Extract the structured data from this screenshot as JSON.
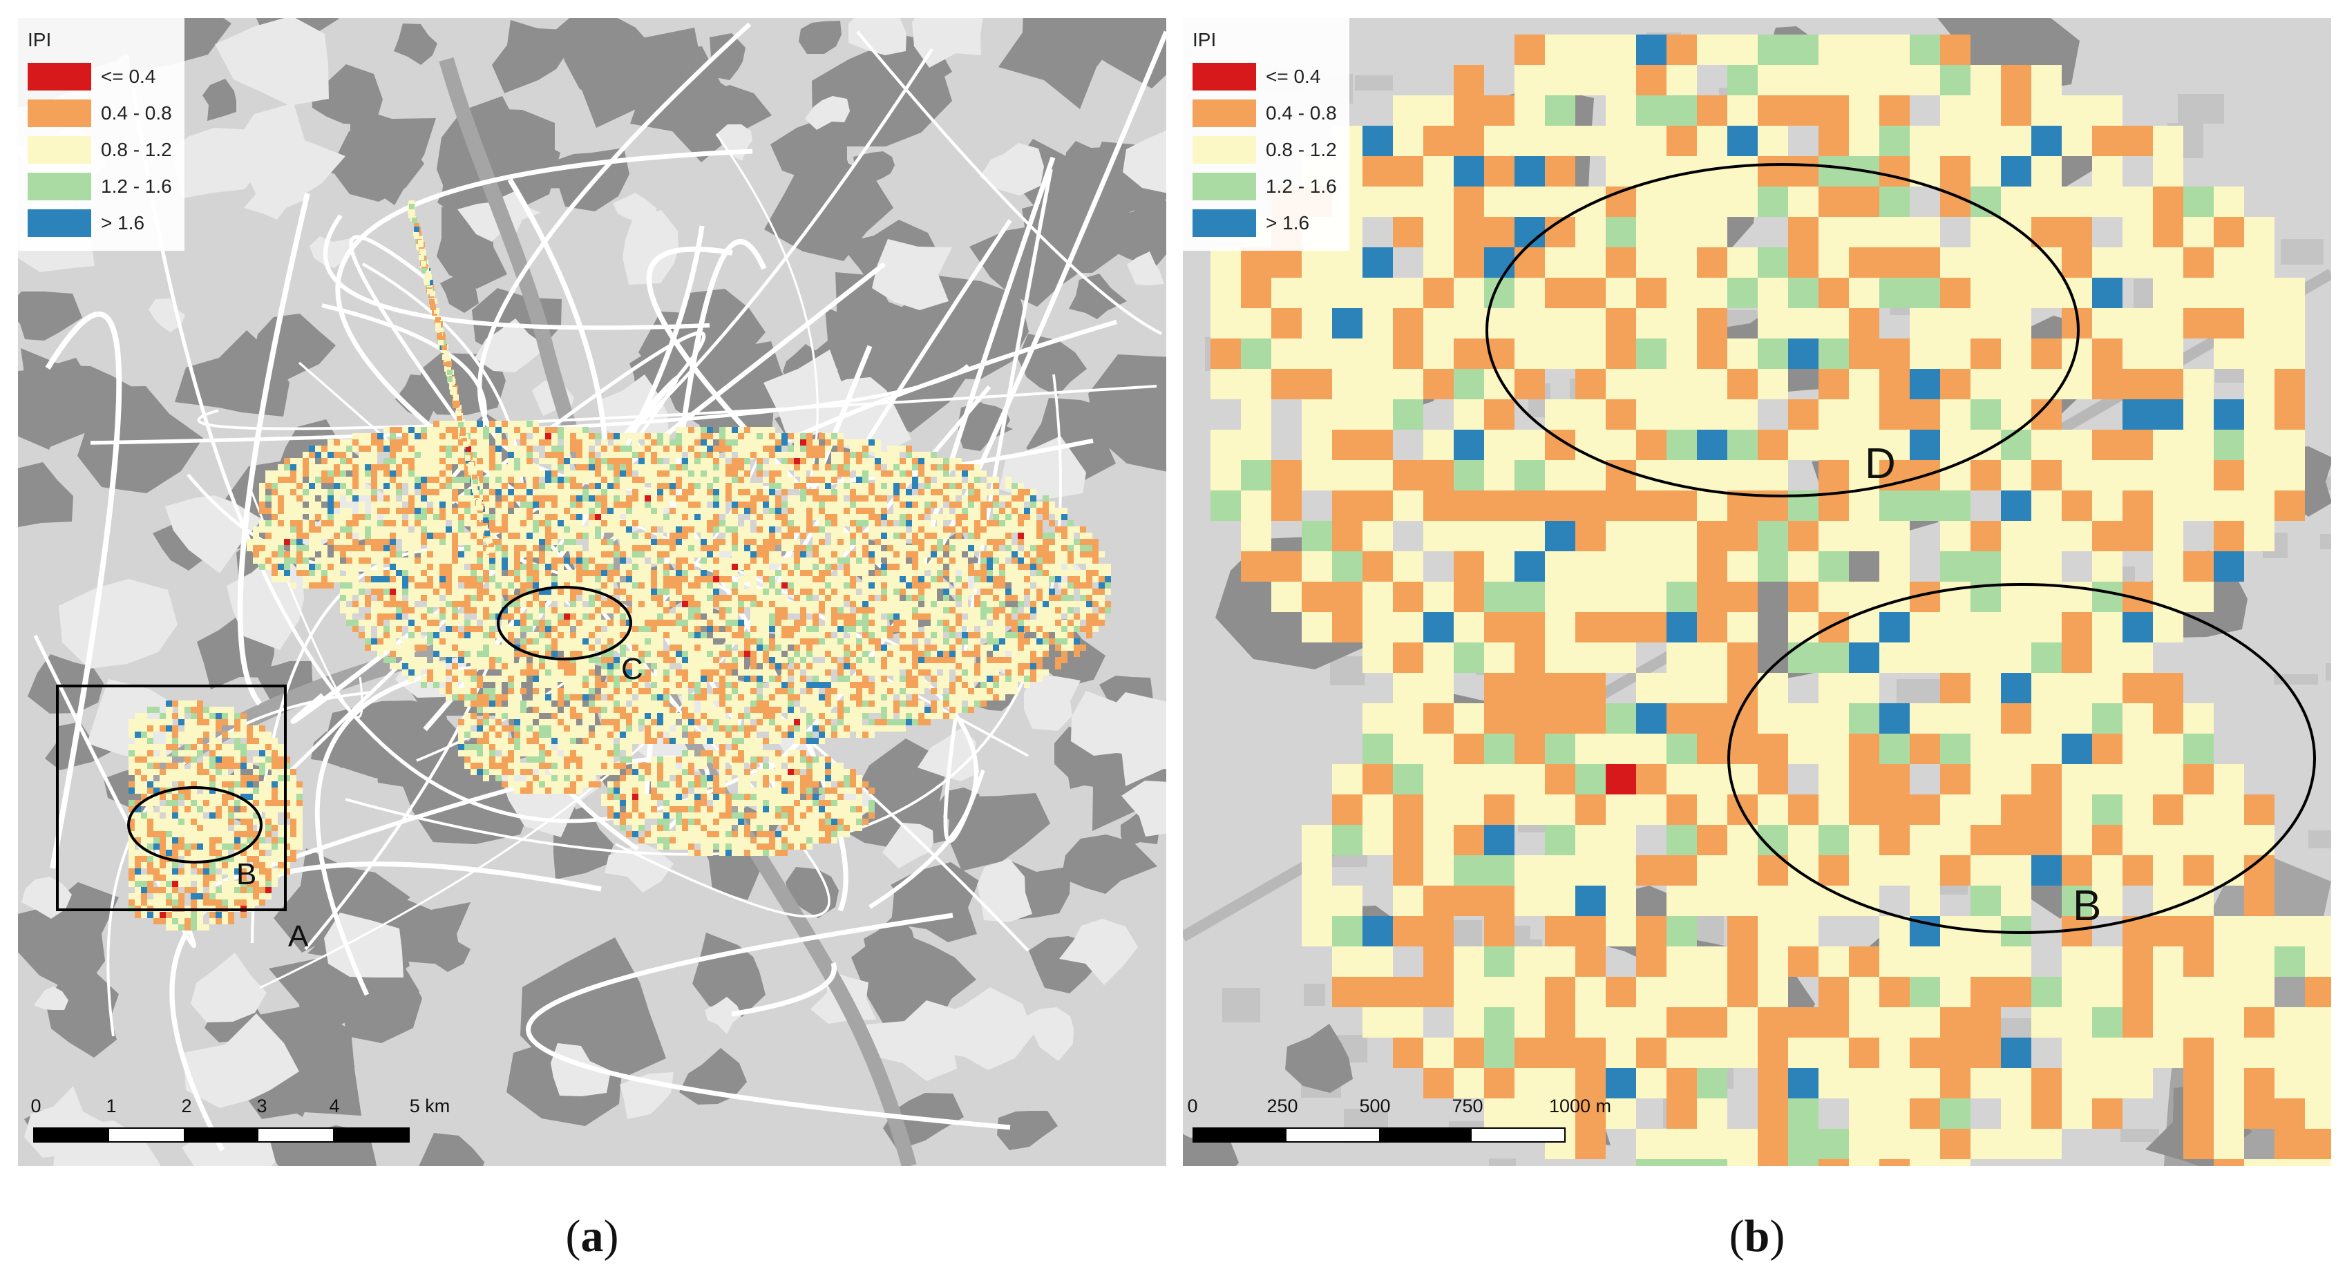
{
  "legend": {
    "title": "IPI",
    "classes": [
      {
        "label": "<= 0.4",
        "color": "#d7191c"
      },
      {
        "label": "0.4 - 0.8",
        "color": "#f4a259"
      },
      {
        "label": "0.8 - 1.2",
        "color": "#fbf8c5"
      },
      {
        "label": "1.2 - 1.6",
        "color": "#a9dba2"
      },
      {
        "label": "> 1.6",
        "color": "#2b83ba"
      }
    ]
  },
  "panel_a": {
    "caption_letter": "a",
    "markers": [
      "A",
      "B",
      "C"
    ],
    "scale": {
      "labels": [
        "0",
        "1",
        "2",
        "3",
        "4",
        "5 km"
      ]
    }
  },
  "panel_b": {
    "caption_letter": "b",
    "markers": [
      "D",
      "B"
    ],
    "scale": {
      "labels": [
        "0",
        "250",
        "500",
        "750",
        "1000 m"
      ]
    }
  },
  "basemap_colors": {
    "background": "#d4d4d4",
    "forest": "#8e8e8e",
    "open": "#e9e9e9",
    "river": "#a5a5a5",
    "roads": "#ffffff"
  }
}
